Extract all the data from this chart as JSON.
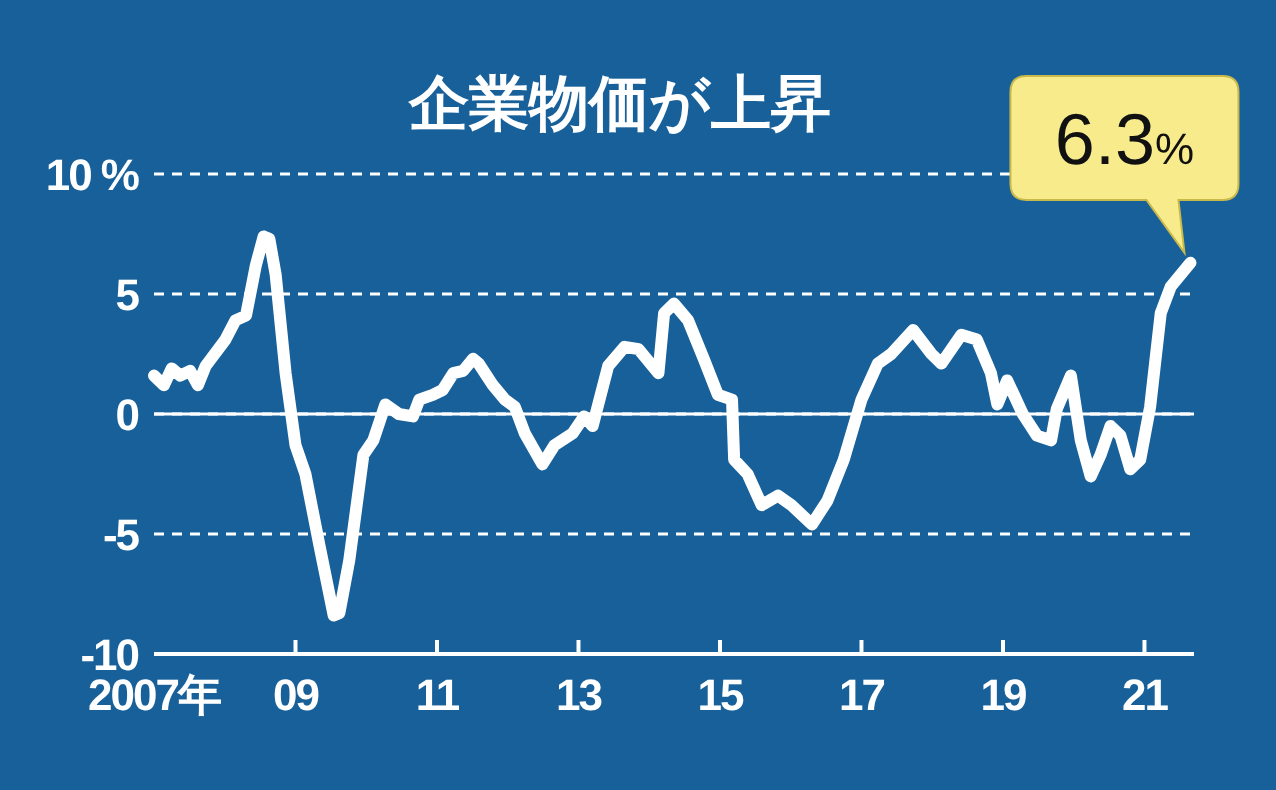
{
  "chart_data": {
    "type": "line",
    "title": "企業物価が上昇",
    "x": [
      2007.0,
      2007.14,
      2007.25,
      2007.37,
      2007.51,
      2007.62,
      2007.73,
      2008.01,
      2008.15,
      2008.3,
      2008.44,
      2008.55,
      2008.63,
      2008.72,
      2008.86,
      2009.0,
      2009.14,
      2009.34,
      2009.54,
      2009.62,
      2009.76,
      2009.96,
      2010.1,
      2010.27,
      2010.46,
      2010.66,
      2010.75,
      2010.94,
      2011.08,
      2011.23,
      2011.37,
      2011.51,
      2011.59,
      2011.79,
      2011.96,
      2012.1,
      2012.24,
      2012.49,
      2012.66,
      2012.92,
      2013.08,
      2013.2,
      2013.42,
      2013.65,
      2013.85,
      2014.13,
      2014.21,
      2014.35,
      2014.55,
      2014.77,
      2014.97,
      2015.17,
      2015.2,
      2015.39,
      2015.59,
      2015.82,
      2016.01,
      2016.3,
      2016.52,
      2016.75,
      2017.0,
      2017.23,
      2017.42,
      2017.73,
      2017.99,
      2018.13,
      2018.41,
      2018.63,
      2018.83,
      2018.92,
      2019.06,
      2019.28,
      2019.48,
      2019.68,
      2019.76,
      2019.96,
      2020.1,
      2020.24,
      2020.38,
      2020.52,
      2020.66,
      2020.8,
      2020.94,
      2021.08,
      2021.23,
      2021.37,
      2021.51,
      2021.65
    ],
    "series": [
      {
        "color": "#ffffff",
        "values": [
          1.6,
          1.2,
          1.9,
          1.6,
          1.8,
          1.2,
          2.0,
          3.1,
          3.9,
          4.1,
          6.2,
          7.4,
          7.3,
          5.8,
          1.7,
          -1.3,
          -2.5,
          -5.5,
          -8.4,
          -8.3,
          -6.1,
          -1.7,
          -1.1,
          0.4,
          0,
          -0.1,
          0.6,
          0.8,
          1.0,
          1.7,
          1.8,
          2.3,
          2.1,
          1.2,
          0.6,
          0.3,
          -0.8,
          -2.1,
          -1.3,
          -0.8,
          -0.1,
          -0.5,
          2.0,
          2.8,
          2.7,
          1.7,
          4.2,
          4.6,
          3.9,
          2.3,
          0.8,
          0.6,
          -1.9,
          -2.5,
          -3.8,
          -3.4,
          -3.8,
          -4.6,
          -3.6,
          -1.9,
          0.6,
          2.1,
          2.5,
          3.5,
          2.5,
          2.1,
          3.3,
          3.1,
          1.7,
          0.4,
          1.4,
          0,
          -0.9,
          -1.1,
          0.2,
          1.6,
          -1.1,
          -2.6,
          -1.7,
          -0.5,
          -0.9,
          -2.3,
          -1.9,
          0.3,
          4.2,
          5.3,
          5.8,
          6.3
        ]
      }
    ],
    "xlim": [
      2007,
      2021.7
    ],
    "xticks": [
      {
        "value": 2007,
        "label": "2007年"
      },
      {
        "value": 2009,
        "label": "09"
      },
      {
        "value": 2011,
        "label": "11"
      },
      {
        "value": 2013,
        "label": "13"
      },
      {
        "value": 2015,
        "label": "15"
      },
      {
        "value": 2017,
        "label": "17"
      },
      {
        "value": 2019,
        "label": "19"
      },
      {
        "value": 2021,
        "label": "21"
      }
    ],
    "ylim": [
      -10,
      10
    ],
    "yticks": [
      {
        "value": 10,
        "label": "10 %"
      },
      5,
      0,
      -5,
      -10
    ],
    "grid": "y",
    "line_style": "solid",
    "marker": "none",
    "ref_lines": [
      {
        "axis": "y",
        "value": 0,
        "label": null,
        "color": "#ffffff",
        "line_style": "solid"
      }
    ],
    "annotations": [
      {
        "text": "6.3%",
        "x": 2021.65,
        "y": 6.3
      }
    ]
  }
}
